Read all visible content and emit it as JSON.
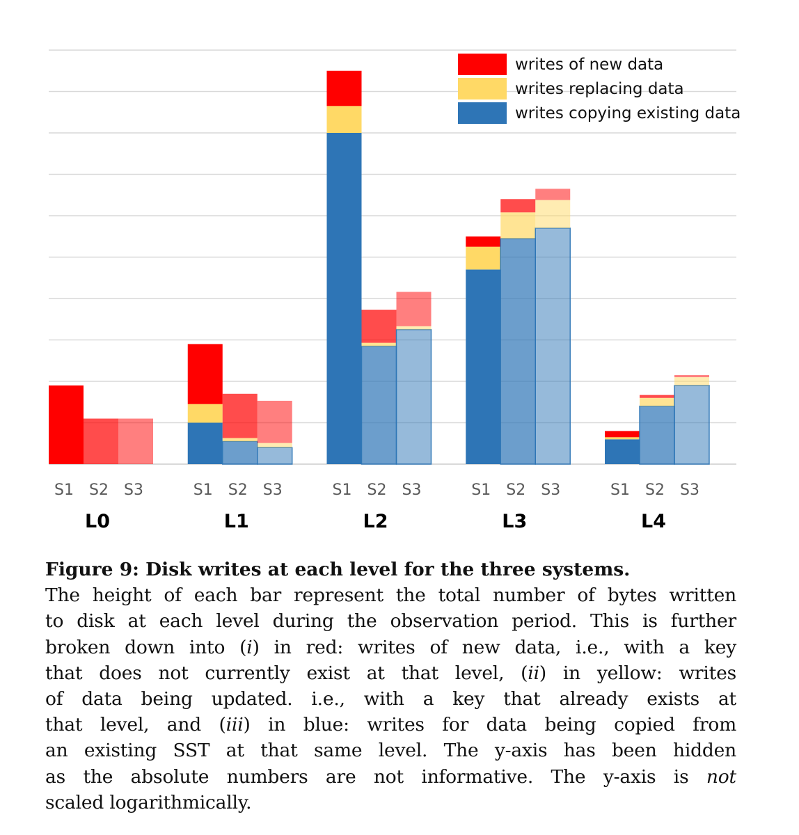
{
  "chart_data": {
    "type": "bar",
    "stacked": true,
    "title": "",
    "xlabel": "",
    "ylabel": "",
    "y_axis_hidden": true,
    "grid": true,
    "ylim": [
      0,
      100
    ],
    "groups": [
      "L0",
      "L1",
      "L2",
      "L3",
      "L4"
    ],
    "systems": [
      "S1",
      "S2",
      "S3"
    ],
    "legend_position": "top-right",
    "series": [
      {
        "name": "writes copying existing data",
        "key": "copy",
        "color": "#2E75B6",
        "values": {
          "L0": [
            0,
            0,
            0
          ],
          "L1": [
            10,
            5.5,
            4
          ],
          "L2": [
            80,
            28.5,
            32.5
          ],
          "L3": [
            47,
            54.5,
            57
          ],
          "L4": [
            6,
            14,
            19
          ]
        }
      },
      {
        "name": "writes replacing data",
        "key": "replace",
        "color": "#FFD966",
        "values": {
          "L0": [
            0,
            0,
            0
          ],
          "L1": [
            4.5,
            0.8,
            1.1
          ],
          "L2": [
            6.5,
            0.8,
            0.8
          ],
          "L3": [
            5.5,
            6.3,
            6.8
          ],
          "L4": [
            0.5,
            2,
            2
          ]
        }
      },
      {
        "name": "writes of new data",
        "key": "new",
        "color": "#FF0000",
        "values": {
          "L0": [
            19,
            11,
            11
          ],
          "L1": [
            14.5,
            10.7,
            10.2
          ],
          "L2": [
            8.5,
            8,
            8.3
          ],
          "L3": [
            2.5,
            3.2,
            2.7
          ],
          "L4": [
            1.5,
            0.7,
            0.5
          ]
        }
      }
    ],
    "system_opacity": [
      1,
      0.7,
      0.5
    ]
  },
  "legend": {
    "items": [
      {
        "label": "writes of new data",
        "color": "#FF0000"
      },
      {
        "label": "writes replacing data",
        "color": "#FFD966"
      },
      {
        "label": "writes copying existing data",
        "color": "#2E75B6"
      }
    ]
  },
  "caption": {
    "title": "Figure 9: Disk writes at each level for the three systems.",
    "lines": [
      "The height of each bar represent the total number of bytes written",
      "to disk at each level during the observation period. This is further",
      "broken down into (i) in red: writes of new data, i.e., with a key",
      "that does not currently exist at that level, (ii) in yellow: writes",
      "of data being updated. i.e., with a key that already exists at",
      "that level, and (iii) in blue: writes for data being copied from",
      "an existing SST at that same level. The y-axis has been hidden",
      "as the absolute numbers are not informative. The y-axis is not",
      "scaled logarithmically."
    ]
  }
}
